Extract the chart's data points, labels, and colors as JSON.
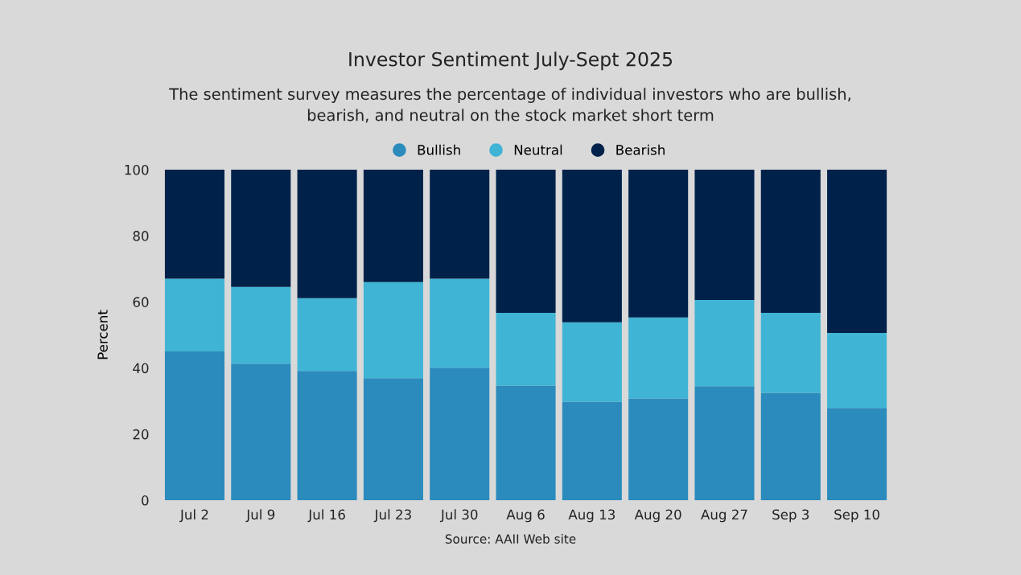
{
  "chart_data": {
    "type": "bar",
    "stacked": true,
    "title": "Investor Sentiment July-Sept 2025",
    "subtitle": "The sentiment survey measures the percentage of individual investors who are bullish,\nbearish, and neutral on the stock market short term",
    "ylabel": "Percent",
    "categories": [
      "Jul 2",
      "Jul 9",
      "Jul 16",
      "Jul 23",
      "Jul 30",
      "Aug 6",
      "Aug 13",
      "Aug 20",
      "Aug 27",
      "Sep 3",
      "Sep 10"
    ],
    "series": [
      {
        "name": "Bullish",
        "color": "#2b8bbd",
        "values": [
          45.0,
          41.3,
          39.1,
          36.9,
          40.1,
          34.7,
          29.8,
          30.8,
          34.5,
          32.5,
          27.9
        ]
      },
      {
        "name": "Neutral",
        "color": "#40b4d4",
        "values": [
          22.0,
          23.2,
          22.0,
          29.1,
          26.9,
          22.0,
          24.0,
          24.5,
          26.1,
          24.2,
          22.7
        ]
      },
      {
        "name": "Bearish",
        "color": "#00224a",
        "values": [
          33.0,
          35.5,
          38.9,
          34.0,
          33.0,
          43.3,
          46.2,
          44.7,
          39.4,
          43.3,
          49.4
        ]
      }
    ],
    "ylim": [
      0,
      100
    ],
    "yticks": [
      0,
      20,
      40,
      60,
      80,
      100
    ],
    "grid": false,
    "legend": "top",
    "annotations": [
      "Source: AAII Web site"
    ]
  }
}
